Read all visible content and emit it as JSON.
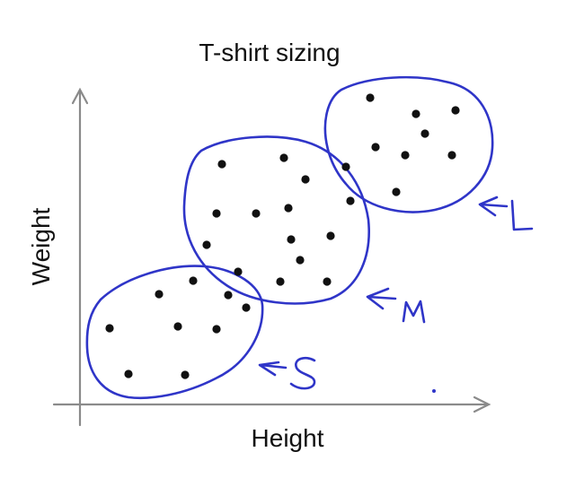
{
  "title": "T-shirt sizing",
  "x_axis_label": "Height",
  "y_axis_label": "Weight",
  "colors": {
    "ink": "#111111",
    "axis": "#8a8a8a",
    "annotation_blue": "#2f35c8"
  },
  "clusters": [
    {
      "id": "small",
      "annotation": "S"
    },
    {
      "id": "medium",
      "annotation": "M"
    },
    {
      "id": "large",
      "annotation": "L"
    }
  ]
}
